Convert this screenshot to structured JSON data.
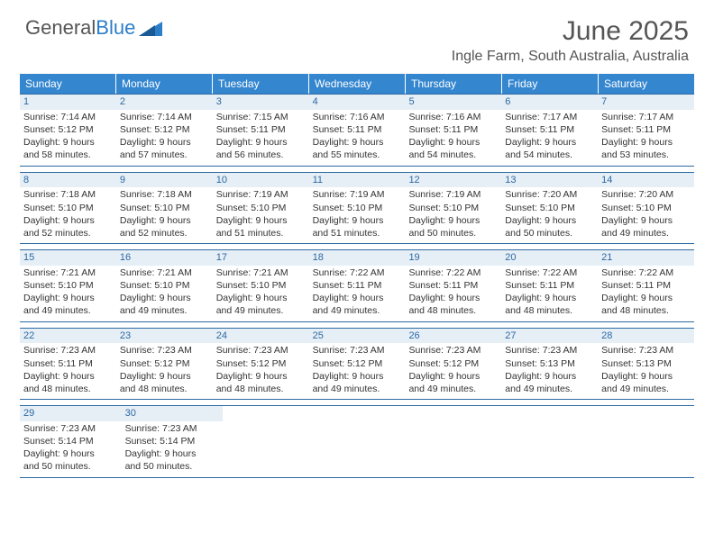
{
  "logo": {
    "word1": "General",
    "word2": "Blue"
  },
  "title": "June 2025",
  "location": "Ingle Farm, South Australia, Australia",
  "colors": {
    "header_bg": "#3486cf",
    "header_text": "#ffffff",
    "accent": "#2c6aa3",
    "daynum_bg": "#e6eef6",
    "text": "#333333",
    "title_text": "#555555"
  },
  "dayHeaders": [
    "Sunday",
    "Monday",
    "Tuesday",
    "Wednesday",
    "Thursday",
    "Friday",
    "Saturday"
  ],
  "weeks": [
    [
      {
        "n": "1",
        "sr": "Sunrise: 7:14 AM",
        "ss": "Sunset: 5:12 PM",
        "d1": "Daylight: 9 hours",
        "d2": "and 58 minutes."
      },
      {
        "n": "2",
        "sr": "Sunrise: 7:14 AM",
        "ss": "Sunset: 5:12 PM",
        "d1": "Daylight: 9 hours",
        "d2": "and 57 minutes."
      },
      {
        "n": "3",
        "sr": "Sunrise: 7:15 AM",
        "ss": "Sunset: 5:11 PM",
        "d1": "Daylight: 9 hours",
        "d2": "and 56 minutes."
      },
      {
        "n": "4",
        "sr": "Sunrise: 7:16 AM",
        "ss": "Sunset: 5:11 PM",
        "d1": "Daylight: 9 hours",
        "d2": "and 55 minutes."
      },
      {
        "n": "5",
        "sr": "Sunrise: 7:16 AM",
        "ss": "Sunset: 5:11 PM",
        "d1": "Daylight: 9 hours",
        "d2": "and 54 minutes."
      },
      {
        "n": "6",
        "sr": "Sunrise: 7:17 AM",
        "ss": "Sunset: 5:11 PM",
        "d1": "Daylight: 9 hours",
        "d2": "and 54 minutes."
      },
      {
        "n": "7",
        "sr": "Sunrise: 7:17 AM",
        "ss": "Sunset: 5:11 PM",
        "d1": "Daylight: 9 hours",
        "d2": "and 53 minutes."
      }
    ],
    [
      {
        "n": "8",
        "sr": "Sunrise: 7:18 AM",
        "ss": "Sunset: 5:10 PM",
        "d1": "Daylight: 9 hours",
        "d2": "and 52 minutes."
      },
      {
        "n": "9",
        "sr": "Sunrise: 7:18 AM",
        "ss": "Sunset: 5:10 PM",
        "d1": "Daylight: 9 hours",
        "d2": "and 52 minutes."
      },
      {
        "n": "10",
        "sr": "Sunrise: 7:19 AM",
        "ss": "Sunset: 5:10 PM",
        "d1": "Daylight: 9 hours",
        "d2": "and 51 minutes."
      },
      {
        "n": "11",
        "sr": "Sunrise: 7:19 AM",
        "ss": "Sunset: 5:10 PM",
        "d1": "Daylight: 9 hours",
        "d2": "and 51 minutes."
      },
      {
        "n": "12",
        "sr": "Sunrise: 7:19 AM",
        "ss": "Sunset: 5:10 PM",
        "d1": "Daylight: 9 hours",
        "d2": "and 50 minutes."
      },
      {
        "n": "13",
        "sr": "Sunrise: 7:20 AM",
        "ss": "Sunset: 5:10 PM",
        "d1": "Daylight: 9 hours",
        "d2": "and 50 minutes."
      },
      {
        "n": "14",
        "sr": "Sunrise: 7:20 AM",
        "ss": "Sunset: 5:10 PM",
        "d1": "Daylight: 9 hours",
        "d2": "and 49 minutes."
      }
    ],
    [
      {
        "n": "15",
        "sr": "Sunrise: 7:21 AM",
        "ss": "Sunset: 5:10 PM",
        "d1": "Daylight: 9 hours",
        "d2": "and 49 minutes."
      },
      {
        "n": "16",
        "sr": "Sunrise: 7:21 AM",
        "ss": "Sunset: 5:10 PM",
        "d1": "Daylight: 9 hours",
        "d2": "and 49 minutes."
      },
      {
        "n": "17",
        "sr": "Sunrise: 7:21 AM",
        "ss": "Sunset: 5:10 PM",
        "d1": "Daylight: 9 hours",
        "d2": "and 49 minutes."
      },
      {
        "n": "18",
        "sr": "Sunrise: 7:22 AM",
        "ss": "Sunset: 5:11 PM",
        "d1": "Daylight: 9 hours",
        "d2": "and 49 minutes."
      },
      {
        "n": "19",
        "sr": "Sunrise: 7:22 AM",
        "ss": "Sunset: 5:11 PM",
        "d1": "Daylight: 9 hours",
        "d2": "and 48 minutes."
      },
      {
        "n": "20",
        "sr": "Sunrise: 7:22 AM",
        "ss": "Sunset: 5:11 PM",
        "d1": "Daylight: 9 hours",
        "d2": "and 48 minutes."
      },
      {
        "n": "21",
        "sr": "Sunrise: 7:22 AM",
        "ss": "Sunset: 5:11 PM",
        "d1": "Daylight: 9 hours",
        "d2": "and 48 minutes."
      }
    ],
    [
      {
        "n": "22",
        "sr": "Sunrise: 7:23 AM",
        "ss": "Sunset: 5:11 PM",
        "d1": "Daylight: 9 hours",
        "d2": "and 48 minutes."
      },
      {
        "n": "23",
        "sr": "Sunrise: 7:23 AM",
        "ss": "Sunset: 5:12 PM",
        "d1": "Daylight: 9 hours",
        "d2": "and 48 minutes."
      },
      {
        "n": "24",
        "sr": "Sunrise: 7:23 AM",
        "ss": "Sunset: 5:12 PM",
        "d1": "Daylight: 9 hours",
        "d2": "and 48 minutes."
      },
      {
        "n": "25",
        "sr": "Sunrise: 7:23 AM",
        "ss": "Sunset: 5:12 PM",
        "d1": "Daylight: 9 hours",
        "d2": "and 49 minutes."
      },
      {
        "n": "26",
        "sr": "Sunrise: 7:23 AM",
        "ss": "Sunset: 5:12 PM",
        "d1": "Daylight: 9 hours",
        "d2": "and 49 minutes."
      },
      {
        "n": "27",
        "sr": "Sunrise: 7:23 AM",
        "ss": "Sunset: 5:13 PM",
        "d1": "Daylight: 9 hours",
        "d2": "and 49 minutes."
      },
      {
        "n": "28",
        "sr": "Sunrise: 7:23 AM",
        "ss": "Sunset: 5:13 PM",
        "d1": "Daylight: 9 hours",
        "d2": "and 49 minutes."
      }
    ],
    [
      {
        "n": "29",
        "sr": "Sunrise: 7:23 AM",
        "ss": "Sunset: 5:14 PM",
        "d1": "Daylight: 9 hours",
        "d2": "and 50 minutes."
      },
      {
        "n": "30",
        "sr": "Sunrise: 7:23 AM",
        "ss": "Sunset: 5:14 PM",
        "d1": "Daylight: 9 hours",
        "d2": "and 50 minutes."
      },
      null,
      null,
      null,
      null,
      null
    ]
  ]
}
